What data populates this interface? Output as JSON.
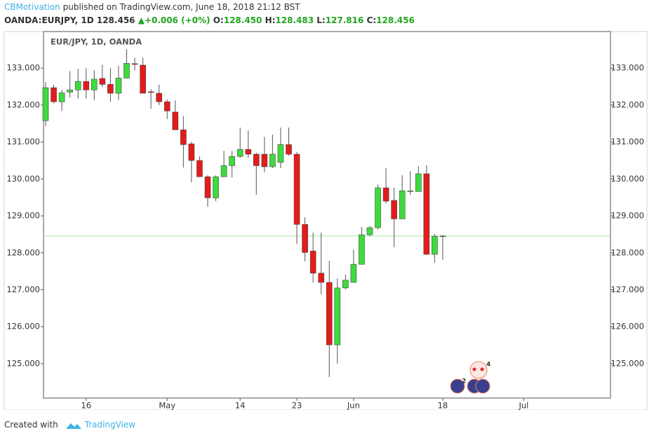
{
  "header": {
    "author": "CBMotivation",
    "published": " published on TradingView.com, June 18, 2018 21:12 BST",
    "symbol": "OANDA:EURJPY, 1D",
    "last_price": "128.456",
    "change": "+0.006 (+0%)",
    "open_label": "O:",
    "open": "128.450",
    "high_label": "H:",
    "high": "128.483",
    "low_label": "L:",
    "low": "127.816",
    "close_label": "C:",
    "close": "128.456"
  },
  "chart_data": {
    "type": "candlestick",
    "label": "EUR/JPY, 1D, OANDA",
    "up_color": "#3ddc3d",
    "down_color": "#e51b1b",
    "last_price_line_color": "#a6e6a6",
    "open": [
      131.58,
      132.47,
      132.09,
      132.35,
      132.41,
      132.64,
      132.41,
      132.72,
      132.56,
      132.32,
      132.73,
      133.12,
      133.08,
      132.36,
      132.32,
      132.09,
      131.81,
      131.33,
      130.95,
      130.5,
      130.06,
      129.49,
      130.06,
      130.36,
      130.61,
      130.8,
      130.67,
      130.67,
      130.33,
      130.45,
      130.93,
      130.67,
      128.77,
      128.05,
      127.45,
      127.2,
      125.51,
      127.05,
      127.2,
      127.69,
      128.49,
      128.68,
      129.76,
      129.42,
      128.92,
      129.66,
      129.66,
      130.14,
      127.96,
      128.45
    ],
    "high": [
      132.62,
      132.55,
      132.41,
      132.92,
      132.98,
      133.0,
      132.94,
      133.09,
      133.0,
      133.06,
      133.51,
      133.28,
      133.28,
      132.43,
      132.55,
      132.15,
      132.13,
      131.71,
      131.01,
      130.61,
      130.1,
      130.1,
      130.76,
      130.76,
      131.39,
      131.31,
      130.71,
      131.14,
      131.2,
      131.39,
      131.39,
      130.73,
      128.96,
      128.55,
      128.55,
      127.79,
      127.31,
      127.41,
      128.09,
      128.7,
      128.73,
      129.85,
      130.29,
      129.76,
      130.1,
      130.21,
      130.35,
      130.37,
      128.51,
      128.483
    ],
    "low": [
      131.43,
      132.05,
      131.84,
      132.2,
      132.18,
      132.18,
      132.13,
      132.49,
      132.09,
      132.13,
      132.72,
      132.94,
      132.32,
      131.9,
      132.0,
      131.62,
      131.33,
      130.31,
      129.91,
      130.06,
      129.25,
      129.4,
      130.06,
      130.04,
      130.57,
      130.57,
      129.57,
      130.18,
      130.29,
      130.29,
      130.63,
      128.24,
      127.77,
      127.2,
      126.88,
      124.64,
      125.0,
      127.01,
      127.2,
      127.69,
      128.45,
      128.64,
      129.34,
      128.15,
      128.92,
      129.57,
      129.66,
      127.94,
      127.73,
      127.816
    ],
    "close": [
      132.47,
      132.09,
      132.33,
      132.41,
      132.64,
      132.41,
      132.7,
      132.56,
      132.32,
      132.73,
      133.13,
      133.1,
      132.32,
      132.35,
      132.09,
      131.84,
      131.33,
      130.93,
      130.5,
      130.06,
      129.49,
      130.06,
      130.36,
      130.61,
      130.8,
      130.67,
      130.36,
      130.33,
      130.67,
      130.93,
      130.67,
      128.77,
      128.01,
      127.45,
      127.2,
      125.51,
      127.05,
      127.26,
      127.69,
      128.49,
      128.68,
      129.76,
      129.4,
      128.92,
      129.68,
      129.68,
      130.14,
      127.96,
      128.45,
      128.456
    ],
    "xlim": [
      -0.26,
      69.7
    ],
    "xticks": [
      {
        "value": 5,
        "label": "16"
      },
      {
        "value": 15,
        "label": "May"
      },
      {
        "value": 24,
        "label": "14"
      },
      {
        "value": 31,
        "label": "23"
      },
      {
        "value": 38,
        "label": "Jun"
      },
      {
        "value": 49,
        "label": "18"
      },
      {
        "value": 59,
        "label": "Jul"
      }
    ],
    "ylim": [
      124.07,
      133.99
    ],
    "yticks": [
      {
        "value": 125,
        "label": "125.000"
      },
      {
        "value": 126,
        "label": "126.000"
      },
      {
        "value": 127,
        "label": "127.000"
      },
      {
        "value": 128,
        "label": "128.000"
      },
      {
        "value": 129,
        "label": "129.000"
      },
      {
        "value": 130,
        "label": "130.000"
      },
      {
        "value": 131,
        "label": "131.000"
      },
      {
        "value": 132,
        "label": "132.000"
      },
      {
        "value": 133,
        "label": "133.000"
      }
    ],
    "grid": false,
    "events": [
      "2",
      "4"
    ]
  },
  "footer": {
    "created": "Created with",
    "brand": "TradingView"
  }
}
